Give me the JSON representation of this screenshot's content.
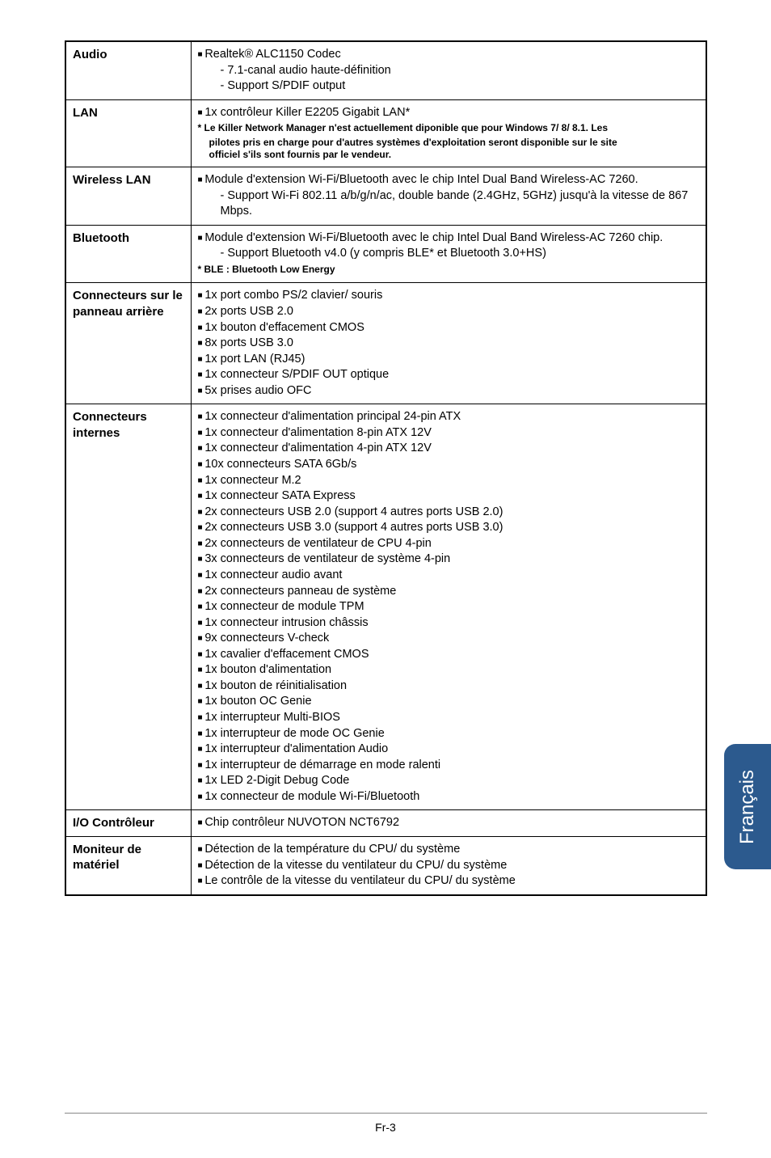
{
  "langTab": "Français",
  "pageNum": "Fr-3",
  "rows": [
    {
      "label": "Audio",
      "items": [
        {
          "t": "bullet",
          "v": "Realtek® ALC1150 Codec"
        },
        {
          "t": "sub",
          "v": "7.1-canal audio haute-définition"
        },
        {
          "t": "sub",
          "v": "Support S/PDIF output"
        }
      ]
    },
    {
      "label": "LAN",
      "items": [
        {
          "t": "bullet",
          "v": "1x contrôleur Killer E2205 Gigabit LAN*"
        }
      ],
      "notes": [
        "* Le Killer Network Manager n'est actuellement diponible que pour Windows 7/ 8/ 8.1. Les",
        "pilotes pris en charge pour d'autres systèmes d'exploitation seront disponible sur le site",
        "officiel s'ils sont fournis par le vendeur."
      ]
    },
    {
      "label": "Wireless LAN",
      "items": [
        {
          "t": "bullet",
          "v": "Module d'extension Wi-Fi/Bluetooth avec le chip Intel Dual Band Wireless-AC 7260."
        },
        {
          "t": "sub",
          "v": "Support Wi-Fi 802.11 a/b/g/n/ac, double bande (2.4GHz, 5GHz) jusqu'à la vitesse de 867 Mbps."
        }
      ]
    },
    {
      "label": "Bluetooth",
      "items": [
        {
          "t": "bullet",
          "v": "Module d'extension Wi-Fi/Bluetooth avec le chip Intel Dual Band Wireless-AC 7260 chip."
        },
        {
          "t": "sub",
          "v": "Support Bluetooth v4.0 (y compris BLE* et Bluetooth 3.0+HS)"
        }
      ],
      "notesBold": "* BLE : Bluetooth Low Energy"
    },
    {
      "label": "Connecteurs sur le panneau arrière",
      "items": [
        {
          "t": "bullet",
          "v": "1x port combo PS/2 clavier/ souris"
        },
        {
          "t": "bullet",
          "v": "2x ports USB 2.0"
        },
        {
          "t": "bullet",
          "v": "1x bouton d'effacement CMOS"
        },
        {
          "t": "bullet",
          "v": "8x ports USB 3.0"
        },
        {
          "t": "bullet",
          "v": "1x port LAN (RJ45)"
        },
        {
          "t": "bullet",
          "v": "1x connecteur S/PDIF OUT optique"
        },
        {
          "t": "bullet",
          "v": "5x prises audio OFC"
        }
      ]
    },
    {
      "label": "Connecteurs internes",
      "items": [
        {
          "t": "bullet",
          "v": "1x connecteur d'alimentation principal 24-pin ATX"
        },
        {
          "t": "bullet",
          "v": "1x connecteur d'alimentation 8-pin ATX 12V"
        },
        {
          "t": "bullet",
          "v": "1x connecteur d'alimentation 4-pin ATX 12V"
        },
        {
          "t": "bullet",
          "v": "10x connecteurs SATA 6Gb/s"
        },
        {
          "t": "bullet",
          "v": "1x connecteur M.2"
        },
        {
          "t": "bullet",
          "v": "1x connecteur SATA Express"
        },
        {
          "t": "bullet",
          "v": "2x connecteurs USB 2.0 (support 4 autres ports USB 2.0)"
        },
        {
          "t": "bullet",
          "v": "2x connecteurs USB 3.0 (support 4 autres ports USB 3.0)"
        },
        {
          "t": "bullet",
          "v": "2x connecteurs de ventilateur de CPU 4-pin"
        },
        {
          "t": "bullet",
          "v": "3x connecteurs de ventilateur de système 4-pin"
        },
        {
          "t": "bullet",
          "v": "1x connecteur audio avant"
        },
        {
          "t": "bullet",
          "v": "2x connecteurs panneau de système"
        },
        {
          "t": "bullet",
          "v": "1x connecteur de module TPM"
        },
        {
          "t": "bullet",
          "v": "1x connecteur intrusion châssis"
        },
        {
          "t": "bullet",
          "v": "9x connecteurs V-check"
        },
        {
          "t": "bullet",
          "v": "1x cavalier d'effacement CMOS"
        },
        {
          "t": "bullet",
          "v": "1x bouton d'alimentation"
        },
        {
          "t": "bullet",
          "v": "1x bouton de réinitialisation"
        },
        {
          "t": "bullet",
          "v": "1x bouton OC Genie"
        },
        {
          "t": "bullet",
          "v": "1x interrupteur Multi-BIOS"
        },
        {
          "t": "bullet",
          "v": "1x interrupteur de mode OC Genie"
        },
        {
          "t": "bullet",
          "v": "1x interrupteur d'alimentation Audio"
        },
        {
          "t": "bullet",
          "v": "1x interrupteur de démarrage en mode ralenti"
        },
        {
          "t": "bullet",
          "v": "1x LED 2-Digit Debug Code"
        },
        {
          "t": "bullet",
          "v": "1x connecteur de module Wi-Fi/Bluetooth"
        }
      ]
    },
    {
      "label": "I/O Contrôleur",
      "items": [
        {
          "t": "bullet",
          "v": "Chip contrôleur NUVOTON NCT6792"
        }
      ]
    },
    {
      "label": "Moniteur de matériel",
      "items": [
        {
          "t": "bullet",
          "v": "Détection de la température du CPU/ du système"
        },
        {
          "t": "bullet",
          "v": "Détection de la vitesse du ventilateur du CPU/ du système"
        },
        {
          "t": "bullet",
          "v": "Le contrôle de la vitesse du ventilateur du CPU/ du système"
        }
      ]
    }
  ]
}
